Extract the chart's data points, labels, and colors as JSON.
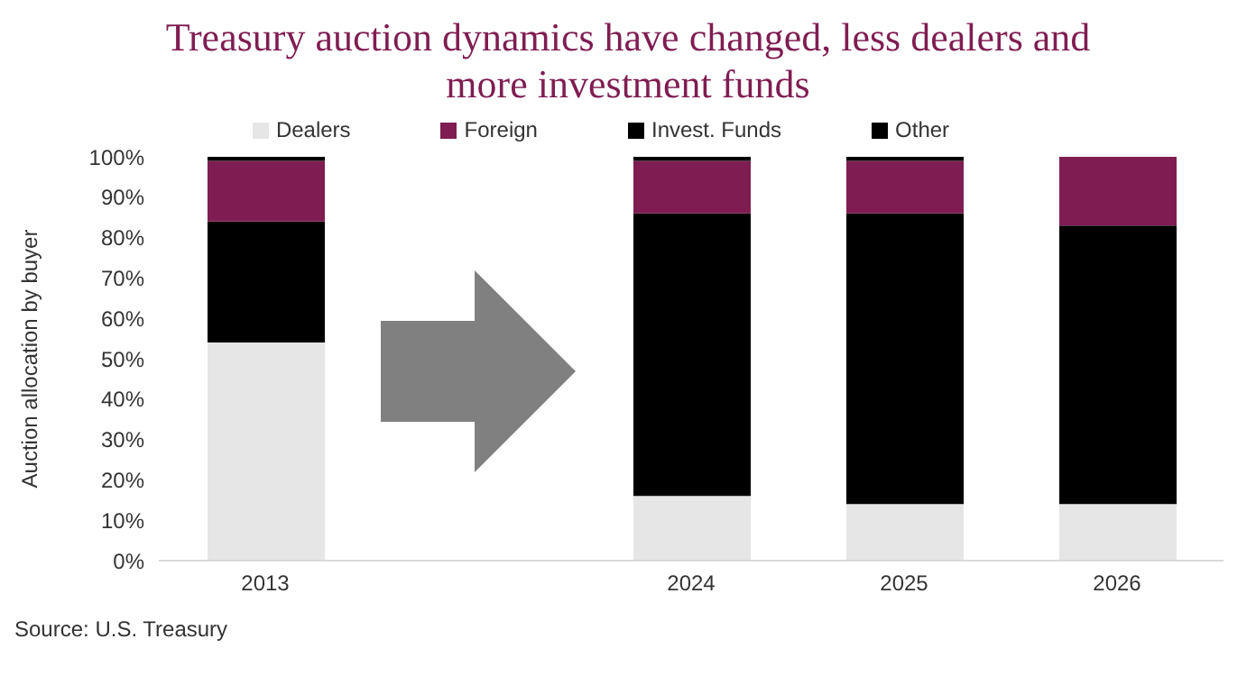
{
  "chart_data": {
    "type": "bar",
    "title": "Treasury auction dynamics have changed, less dealers and more investment funds",
    "ylabel": "Auction allocation by buyer",
    "categories": [
      "2013",
      null,
      "2024",
      "2025",
      "2026"
    ],
    "series": [
      {
        "name": "Dealers",
        "color": "#e6e6e6",
        "values": [
          54,
          null,
          16,
          14,
          14
        ]
      },
      {
        "name": "Invest. Funds",
        "color": "#000000",
        "values": [
          30,
          null,
          70,
          72,
          69
        ]
      },
      {
        "name": "Foreign",
        "color": "#7f1d52",
        "values": [
          15,
          null,
          13,
          13,
          17
        ]
      },
      {
        "name": "Other",
        "color": "#000000",
        "values": [
          1,
          null,
          1,
          1,
          0
        ]
      }
    ],
    "stacked": true,
    "ylim": [
      0,
      100
    ],
    "yticks": [
      {
        "value": 0,
        "label": "0%"
      },
      {
        "value": 10,
        "label": "10%"
      },
      {
        "value": 20,
        "label": "20%"
      },
      {
        "value": 30,
        "label": "30%"
      },
      {
        "value": 40,
        "label": "40%"
      },
      {
        "value": 50,
        "label": "50%"
      },
      {
        "value": 60,
        "label": "60%"
      },
      {
        "value": 70,
        "label": "70%"
      },
      {
        "value": 80,
        "label": "80%"
      },
      {
        "value": 90,
        "label": "90%"
      },
      {
        "value": 100,
        "label": "100%"
      }
    ],
    "legend": "top",
    "grid": false,
    "annotations": [
      "Source: U.S. Treasury"
    ]
  }
}
